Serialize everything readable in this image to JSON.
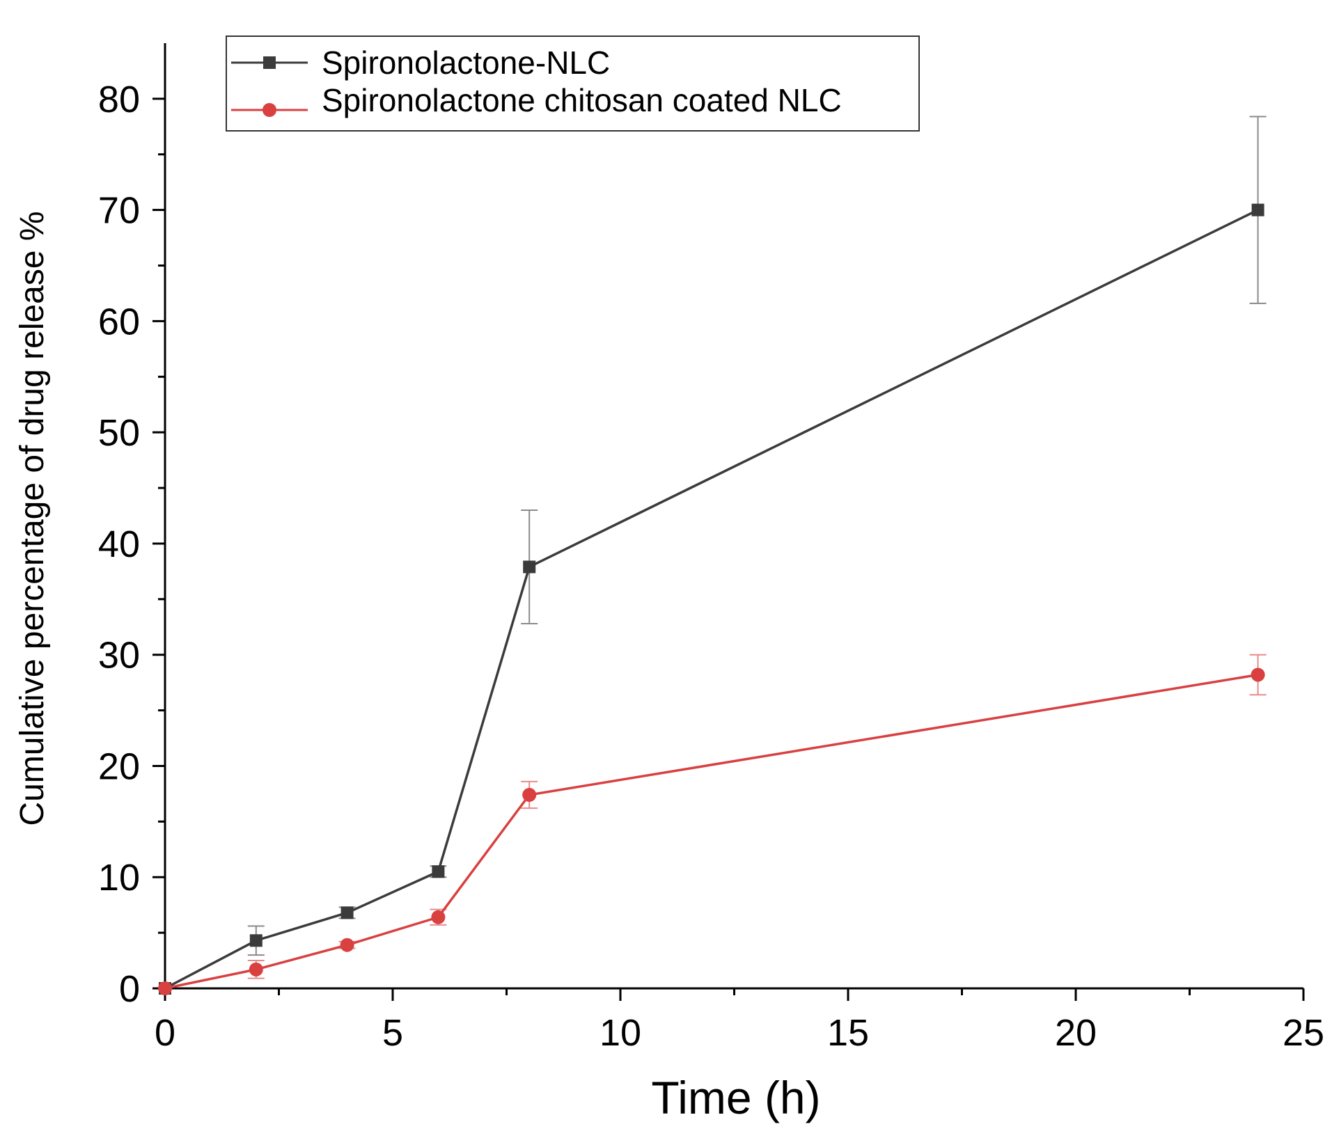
{
  "chart_data": {
    "type": "line",
    "title": "",
    "xlabel": "Time (h)",
    "ylabel": "Cumulative percentage of drug release %",
    "xlim": [
      0,
      25
    ],
    "ylim": [
      0,
      85
    ],
    "xticks": [
      0,
      5,
      10,
      15,
      20,
      25
    ],
    "yticks": [
      0,
      10,
      20,
      30,
      40,
      50,
      60,
      70,
      80
    ],
    "x_minor_step": 2.5,
    "y_minor_step": 5,
    "grid": false,
    "legend_position": "top-left",
    "series": [
      {
        "name": "Spironolactone-NLC",
        "color": "#3b3b3b",
        "errorbar_color": "#8a8a8a",
        "marker": "square",
        "x": [
          0,
          2,
          4,
          6,
          8,
          24
        ],
        "y": [
          0,
          4.3,
          6.8,
          10.5,
          37.9,
          70.0
        ],
        "error": [
          0,
          1.3,
          0.5,
          0.5,
          5.1,
          8.4
        ]
      },
      {
        "name": "Spironolactone chitosan coated NLC",
        "color": "#d94040",
        "errorbar_color": "#e88a8a",
        "marker": "circle",
        "x": [
          0,
          2,
          4,
          6,
          8,
          24
        ],
        "y": [
          0,
          1.7,
          3.9,
          6.4,
          17.4,
          28.2
        ],
        "error": [
          0,
          0.8,
          0.3,
          0.7,
          1.2,
          1.8
        ]
      }
    ]
  }
}
